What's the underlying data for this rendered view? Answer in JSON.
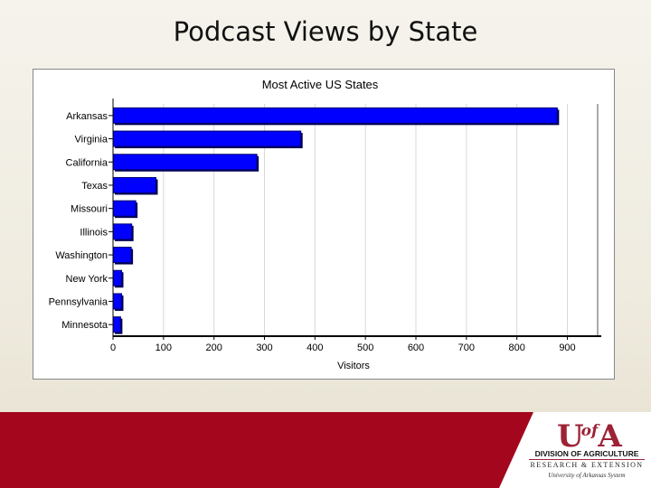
{
  "slide": {
    "title": "Podcast Views by State"
  },
  "chart_data": {
    "type": "bar",
    "orientation": "horizontal",
    "title": "Most Active US States",
    "xlabel": "Visitors",
    "ylabel": "",
    "categories": [
      "Arkansas",
      "Virginia",
      "California",
      "Texas",
      "Missouri",
      "Illinois",
      "Washington",
      "New York",
      "Pennsylvania",
      "Minnesota"
    ],
    "values": [
      880,
      372,
      285,
      85,
      45,
      37,
      36,
      17,
      17,
      15
    ],
    "xlim": [
      0,
      960
    ],
    "xticks": [
      0,
      100,
      200,
      300,
      400,
      500,
      600,
      700,
      800,
      900
    ],
    "grid": "vertical",
    "bar_color": "#0000ff",
    "legend": "none"
  },
  "footer": {
    "band_color": "#a3061d",
    "logo_mark": "U",
    "logo_of": "of",
    "logo_a": "A",
    "logo_line1": "DIVISION OF AGRICULTURE",
    "logo_line2": "RESEARCH & EXTENSION",
    "logo_line3": "University of Arkansas System"
  }
}
